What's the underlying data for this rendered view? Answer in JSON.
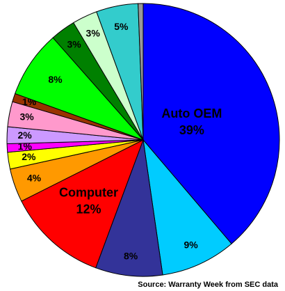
{
  "chart_data": {
    "type": "pie",
    "source": "Source: Warranty Week from SEC data",
    "categories": [
      "Auto OEM",
      null,
      null,
      "Computer",
      null,
      null,
      null,
      null,
      null,
      null,
      null,
      null,
      null,
      null,
      null
    ],
    "values": [
      39,
      9,
      8,
      12,
      4,
      2,
      1,
      2,
      3,
      1,
      8,
      3,
      3,
      5,
      0.6
    ],
    "value_labels": [
      "39%",
      "9%",
      "8%",
      "12%",
      "4%",
      "2%",
      "1%",
      "2%",
      "3%",
      "1%",
      "8%",
      "3%",
      "3%",
      "5%",
      null
    ],
    "colors": [
      "#0000ff",
      "#00ccff",
      "#333399",
      "#ff0000",
      "#ff9900",
      "#ffff00",
      "#ff00ff",
      "#cc99ff",
      "#ff99cc",
      "#993300",
      "#00ff00",
      "#008000",
      "#ccffcc",
      "#33cccc",
      "#999999"
    ]
  }
}
